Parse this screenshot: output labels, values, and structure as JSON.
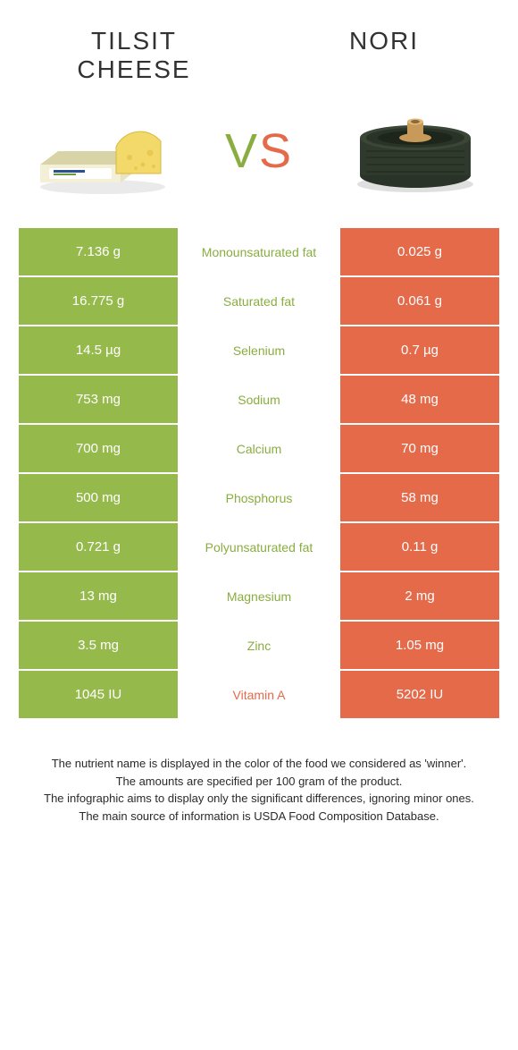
{
  "colors": {
    "left_bg": "#96b94c",
    "right_bg": "#e46a4a",
    "left_text": "#8aad3f",
    "right_text": "#e46a4a",
    "mid_bg": "#ffffff",
    "body_text": "#2a2a2a"
  },
  "header": {
    "left_title": "Tilsit cheese",
    "right_title": "Nori"
  },
  "vs": {
    "v": "V",
    "s": "S"
  },
  "rows": [
    {
      "left": "7.136 g",
      "label": "Monounsaturated fat",
      "right": "0.025 g",
      "winner": "left"
    },
    {
      "left": "16.775 g",
      "label": "Saturated fat",
      "right": "0.061 g",
      "winner": "left"
    },
    {
      "left": "14.5 µg",
      "label": "Selenium",
      "right": "0.7 µg",
      "winner": "left"
    },
    {
      "left": "753 mg",
      "label": "Sodium",
      "right": "48 mg",
      "winner": "left"
    },
    {
      "left": "700 mg",
      "label": "Calcium",
      "right": "70 mg",
      "winner": "left"
    },
    {
      "left": "500 mg",
      "label": "Phosphorus",
      "right": "58 mg",
      "winner": "left"
    },
    {
      "left": "0.721 g",
      "label": "Polyunsaturated fat",
      "right": "0.11 g",
      "winner": "left"
    },
    {
      "left": "13 mg",
      "label": "Magnesium",
      "right": "2 mg",
      "winner": "left"
    },
    {
      "left": "3.5 mg",
      "label": "Zinc",
      "right": "1.05 mg",
      "winner": "left"
    },
    {
      "left": "1045 IU",
      "label": "Vitamin A",
      "right": "5202 IU",
      "winner": "right"
    }
  ],
  "footnotes": [
    "The nutrient name is displayed in the color of the food we considered as 'winner'.",
    "The amounts are specified per 100 gram of the product.",
    "The infographic aims to display only the significant differences, ignoring minor ones.",
    "The main source of information is USDA Food Composition Database."
  ]
}
